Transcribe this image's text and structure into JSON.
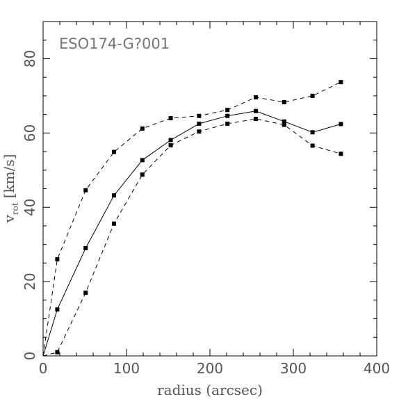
{
  "chart_data": {
    "type": "line",
    "title": "ESO174-G?001",
    "xlabel": "radius (arcsec)",
    "ylabel": {
      "main": "v",
      "sub": "rot",
      "unit": "[km/s]"
    },
    "xlim": [
      0,
      400
    ],
    "ylim": [
      0,
      90
    ],
    "xticks": [
      0,
      100,
      200,
      300,
      400
    ],
    "yticks": [
      0,
      20,
      40,
      60,
      80
    ],
    "series": [
      {
        "style": "solid",
        "x": [
          0,
          17,
          51,
          85,
          119,
          153,
          187,
          221,
          255,
          289,
          323,
          357
        ],
        "y": [
          0,
          12.5,
          29,
          43.2,
          52.7,
          58.1,
          62.5,
          64.6,
          65.9,
          63.1,
          60.2,
          62.4
        ],
        "markers": [
          false,
          true,
          true,
          true,
          true,
          true,
          true,
          true,
          true,
          true,
          true,
          true
        ]
      },
      {
        "style": "dashed",
        "x": [
          0,
          17,
          51,
          85,
          119,
          153,
          187,
          221,
          255,
          289,
          323,
          357
        ],
        "y": [
          0,
          26,
          44.6,
          54.9,
          61.2,
          64.0,
          64.6,
          66.2,
          69.6,
          68.3,
          70.0,
          73.7
        ],
        "markers": [
          false,
          true,
          true,
          true,
          true,
          true,
          true,
          true,
          true,
          true,
          true,
          true
        ]
      },
      {
        "style": "dashed",
        "x": [
          0,
          17,
          51,
          85,
          119,
          153,
          187,
          221,
          255,
          289,
          323,
          357
        ],
        "y": [
          0,
          1.0,
          17.0,
          35.6,
          48.8,
          56.7,
          60.4,
          62.5,
          63.8,
          62.2,
          56.6,
          54.4
        ],
        "markers": [
          false,
          true,
          true,
          true,
          true,
          true,
          true,
          true,
          true,
          true,
          true,
          true
        ]
      }
    ],
    "grid": false,
    "legend": "none"
  }
}
